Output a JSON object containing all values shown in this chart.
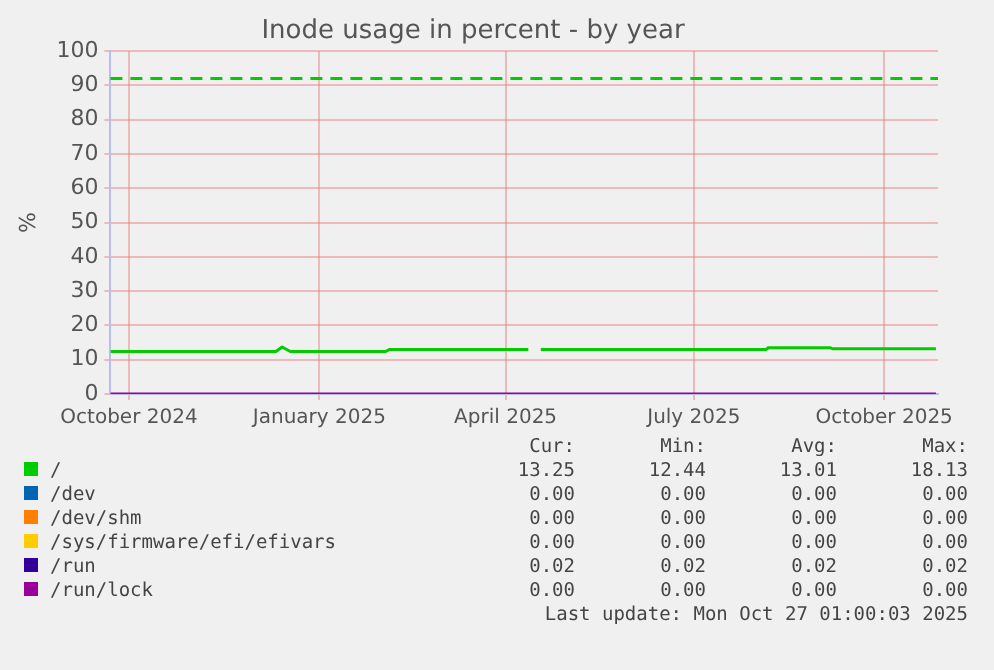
{
  "chart_data": {
    "type": "line",
    "title": "Inode usage in percent - by year",
    "ylabel": "%",
    "xlim": [
      "2024-09-22",
      "2025-10-27"
    ],
    "xticks": [
      {
        "value": "2024-10-01",
        "label": "October 2024"
      },
      {
        "value": "2025-01-01",
        "label": "January 2025"
      },
      {
        "value": "2025-04-01",
        "label": "April 2025"
      },
      {
        "value": "2025-07-01",
        "label": "July 2025"
      },
      {
        "value": "2025-10-01",
        "label": "October 2025"
      }
    ],
    "ylim": [
      0,
      100
    ],
    "yticks": [
      0,
      10,
      20,
      30,
      40,
      50,
      60,
      70,
      80,
      90,
      100
    ],
    "grid": true,
    "legend": "bottom",
    "marker": "none",
    "line_style": "solid",
    "ref_lines": [
      {
        "axis": "y",
        "value": 92,
        "color": "#00cc00",
        "line_style": "dashed"
      }
    ],
    "series": [
      {
        "name": "/",
        "color": "#00cc00",
        "x": [
          "2024-09-22",
          "2024-12-11",
          "2024-12-14",
          "2024-12-18",
          "2025-02-02",
          "2025-02-04",
          "2025-04-12",
          "2025-04-14",
          "2025-04-18",
          "2025-08-05",
          "2025-08-06",
          "2025-09-05",
          "2025-09-06",
          "2025-10-26"
        ],
        "values": [
          12.4,
          12.4,
          13.7,
          12.4,
          12.4,
          13,
          13,
          null,
          13,
          13,
          13.5,
          13.5,
          13.2,
          13.2
        ]
      },
      {
        "name": "/dev",
        "color": "#0066b3"
      },
      {
        "name": "/dev/shm",
        "color": "#ff8000"
      },
      {
        "name": "/sys/firmware/efi/efivars",
        "color": "#ffcc00"
      },
      {
        "name": "/run",
        "color": "#330099"
      },
      {
        "name": "/run/lock",
        "color": "#990099",
        "x": [
          "2024-09-22",
          "2025-10-26"
        ],
        "values": [
          0,
          0
        ]
      }
    ],
    "annotations": [
      "Cur:",
      "Min:",
      "Avg:",
      "Max:",
      "13.25",
      "12.44",
      "13.01",
      "18.13",
      "0.00",
      "0.00",
      "0.00",
      "0.00",
      "0.00",
      "0.00",
      "0.00",
      "0.00",
      "0.00",
      "0.00",
      "0.00",
      "0.00",
      "0.02",
      "0.02",
      "0.02",
      "0.02",
      "0.00",
      "0.00",
      "0.00",
      "0.00",
      "Last update: Mon Oct 27 01:00:03 2025"
    ]
  }
}
